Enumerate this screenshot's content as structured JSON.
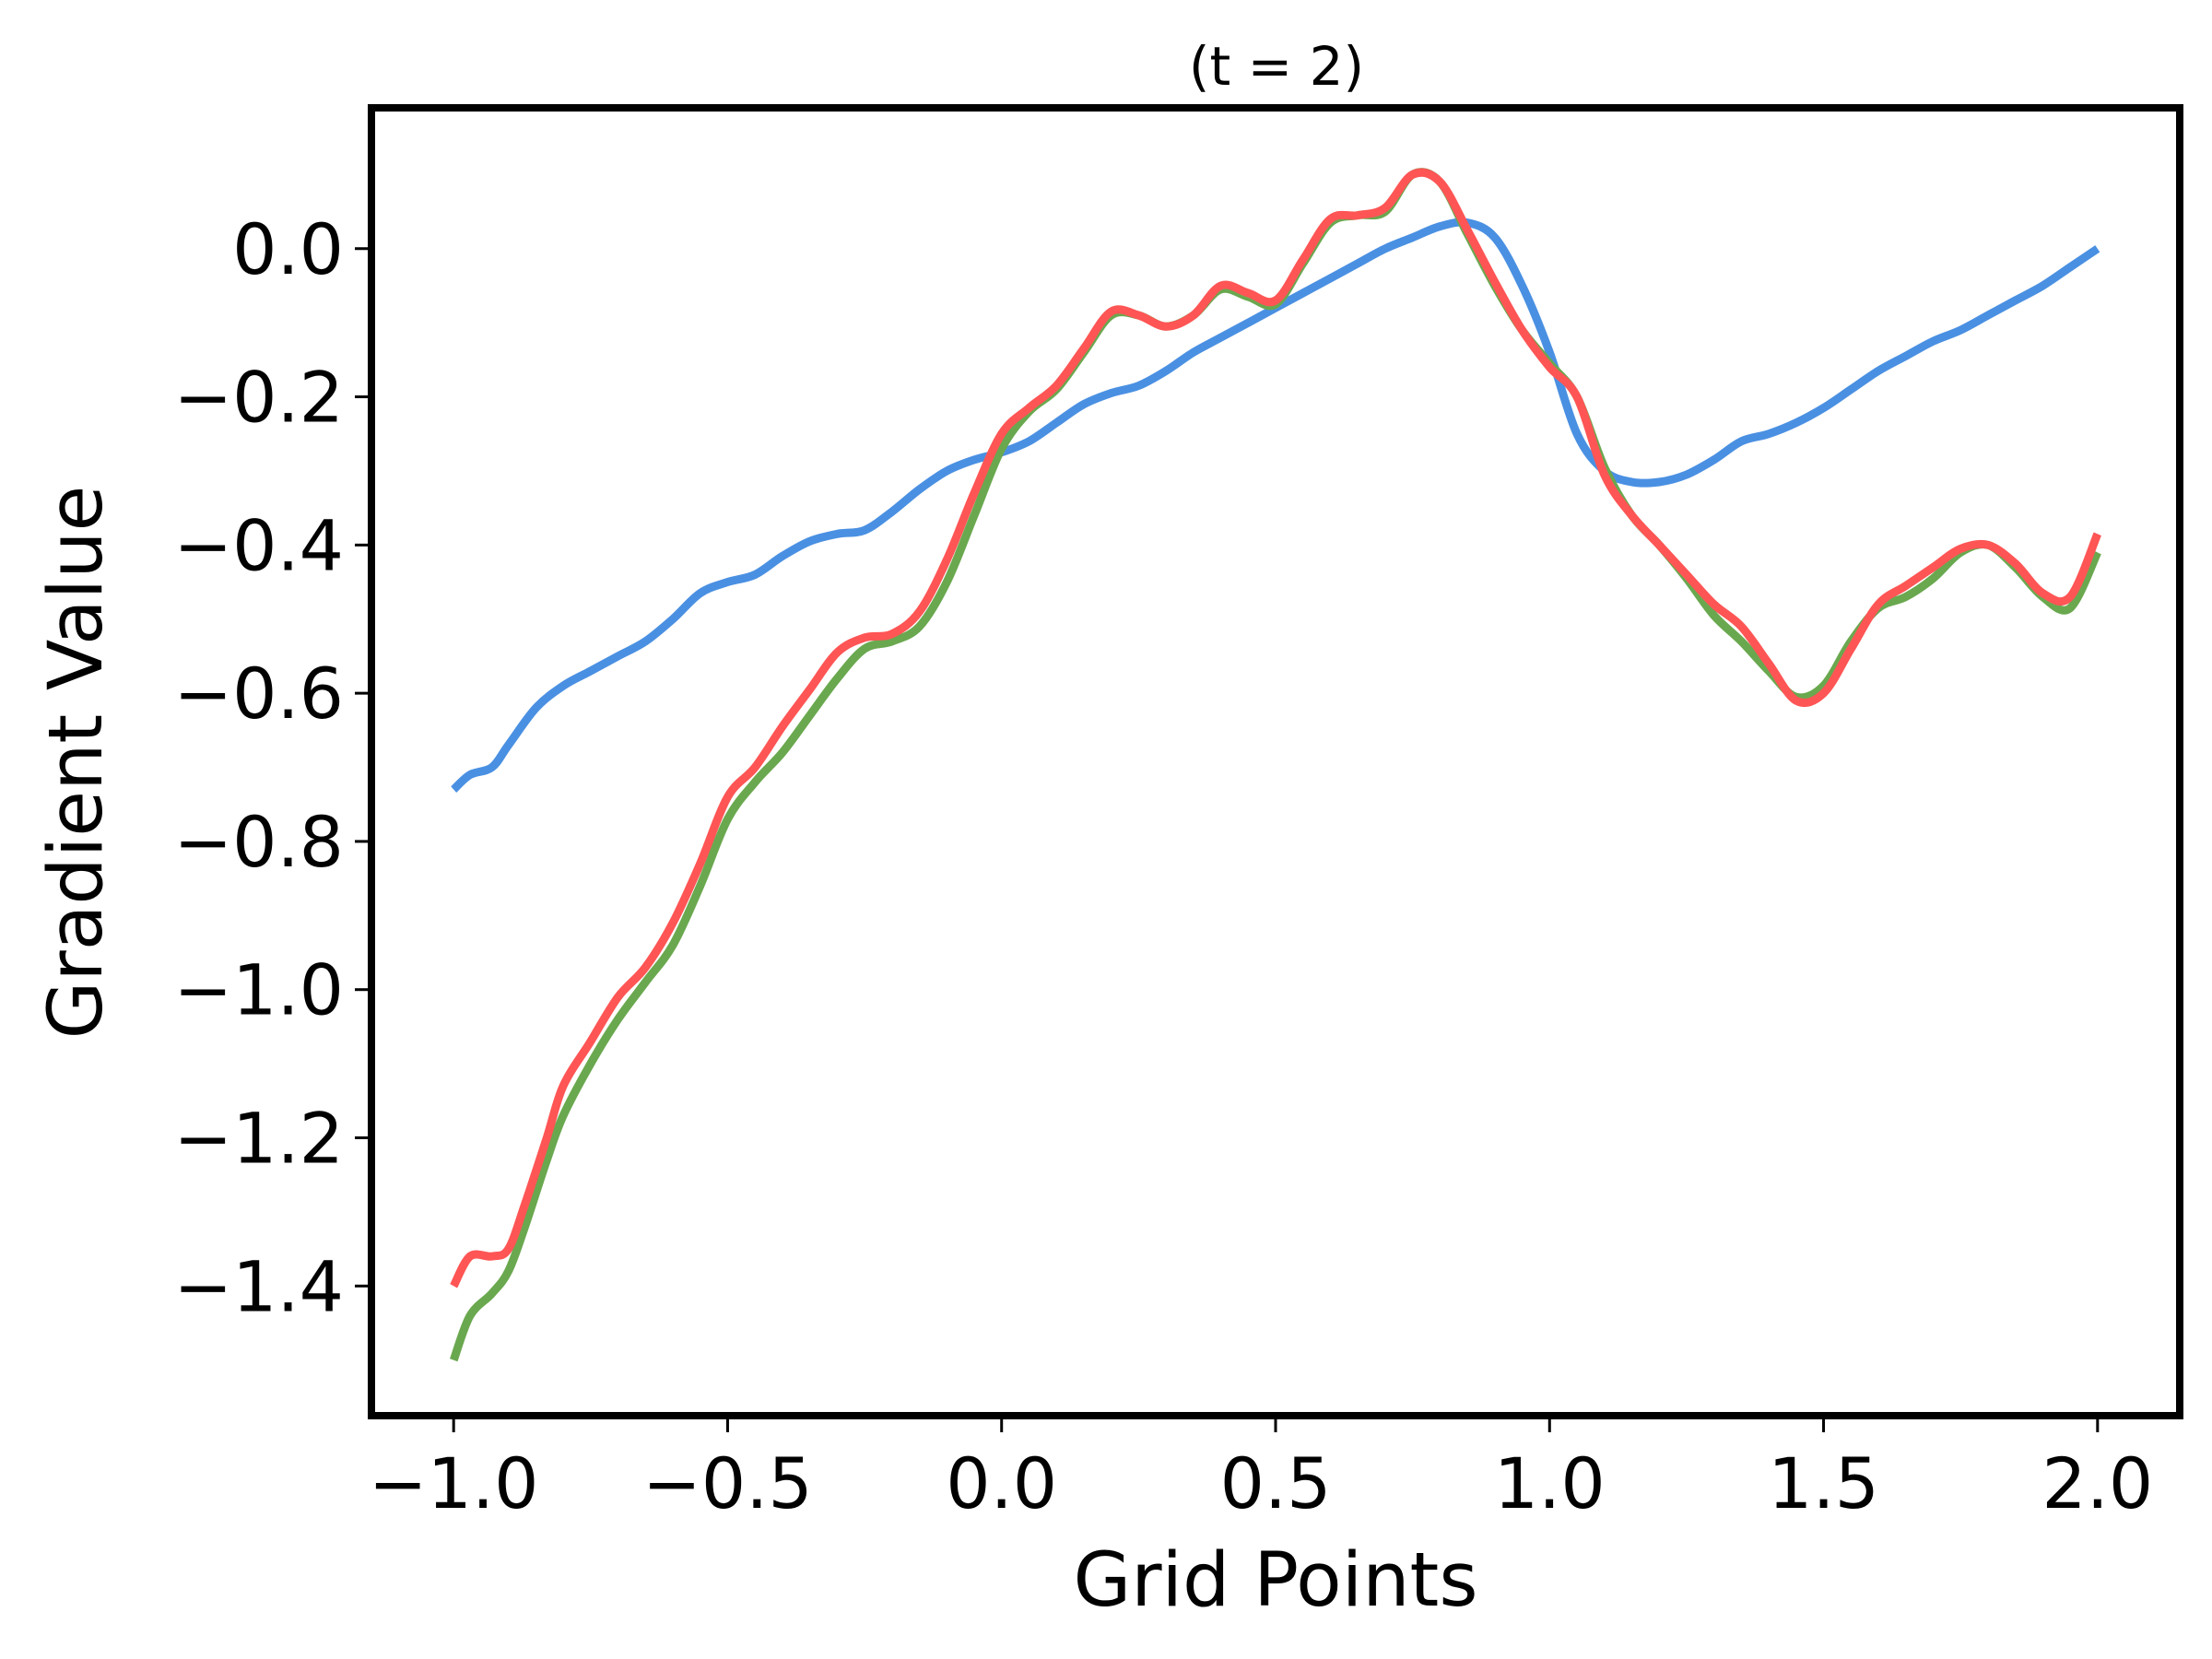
{
  "chart_data": {
    "type": "line",
    "title": "(t = 2)",
    "xlabel": "Grid Points",
    "ylabel": "Gradient Value",
    "xlim": [
      -1.15,
      2.15
    ],
    "ylim": [
      -1.575,
      0.19
    ],
    "grid": false,
    "legend": "none",
    "xticks": [
      -1.0,
      -0.5,
      0.0,
      0.5,
      1.0,
      1.5,
      2.0
    ],
    "xtick_labels": [
      "−1.0",
      "−0.5",
      "0.0",
      "0.5",
      "1.0",
      "1.5",
      "2.0"
    ],
    "yticks": [
      0.0,
      -0.2,
      -0.4,
      -0.6,
      -0.8,
      -1.0,
      -1.2,
      -1.4
    ],
    "ytick_labels": [
      "0.0",
      "−0.2",
      "−0.4",
      "−0.6",
      "−0.8",
      "−1.0",
      "−1.2",
      "−1.4"
    ],
    "series": [
      {
        "color": "#4a90e2",
        "points": [
          [
            -1.0,
            -0.73
          ],
          [
            -0.97,
            -0.71
          ],
          [
            -0.93,
            -0.7
          ],
          [
            -0.9,
            -0.67
          ],
          [
            -0.85,
            -0.62
          ],
          [
            -0.8,
            -0.59
          ],
          [
            -0.75,
            -0.57
          ],
          [
            -0.7,
            -0.55
          ],
          [
            -0.65,
            -0.53
          ],
          [
            -0.6,
            -0.5
          ],
          [
            -0.55,
            -0.465
          ],
          [
            -0.5,
            -0.45
          ],
          [
            -0.45,
            -0.44
          ],
          [
            -0.4,
            -0.415
          ],
          [
            -0.35,
            -0.395
          ],
          [
            -0.3,
            -0.385
          ],
          [
            -0.25,
            -0.38
          ],
          [
            -0.2,
            -0.355
          ],
          [
            -0.15,
            -0.325
          ],
          [
            -0.1,
            -0.3
          ],
          [
            -0.05,
            -0.285
          ],
          [
            0.0,
            -0.275
          ],
          [
            0.05,
            -0.26
          ],
          [
            0.1,
            -0.235
          ],
          [
            0.15,
            -0.21
          ],
          [
            0.2,
            -0.195
          ],
          [
            0.25,
            -0.185
          ],
          [
            0.3,
            -0.165
          ],
          [
            0.35,
            -0.14
          ],
          [
            0.4,
            -0.12
          ],
          [
            0.45,
            -0.1
          ],
          [
            0.5,
            -0.08
          ],
          [
            0.55,
            -0.06
          ],
          [
            0.6,
            -0.04
          ],
          [
            0.65,
            -0.02
          ],
          [
            0.7,
            0.0
          ],
          [
            0.75,
            0.015
          ],
          [
            0.8,
            0.03
          ],
          [
            0.85,
            0.035
          ],
          [
            0.9,
            0.015
          ],
          [
            0.95,
            -0.05
          ],
          [
            1.0,
            -0.14
          ],
          [
            1.05,
            -0.25
          ],
          [
            1.1,
            -0.3
          ],
          [
            1.15,
            -0.315
          ],
          [
            1.2,
            -0.315
          ],
          [
            1.25,
            -0.305
          ],
          [
            1.3,
            -0.285
          ],
          [
            1.35,
            -0.26
          ],
          [
            1.4,
            -0.25
          ],
          [
            1.45,
            -0.235
          ],
          [
            1.5,
            -0.215
          ],
          [
            1.55,
            -0.19
          ],
          [
            1.6,
            -0.165
          ],
          [
            1.65,
            -0.145
          ],
          [
            1.7,
            -0.125
          ],
          [
            1.75,
            -0.11
          ],
          [
            1.8,
            -0.09
          ],
          [
            1.85,
            -0.07
          ],
          [
            1.9,
            -0.05
          ],
          [
            1.95,
            -0.025
          ],
          [
            2.0,
            0.0
          ]
        ]
      },
      {
        "color": "#6aa84f",
        "points": [
          [
            -1.0,
            -1.5
          ],
          [
            -0.97,
            -1.44
          ],
          [
            -0.93,
            -1.41
          ],
          [
            -0.9,
            -1.38
          ],
          [
            -0.87,
            -1.32
          ],
          [
            -0.83,
            -1.23
          ],
          [
            -0.8,
            -1.17
          ],
          [
            -0.75,
            -1.1
          ],
          [
            -0.7,
            -1.04
          ],
          [
            -0.65,
            -0.99
          ],
          [
            -0.6,
            -0.94
          ],
          [
            -0.55,
            -0.86
          ],
          [
            -0.5,
            -0.77
          ],
          [
            -0.45,
            -0.72
          ],
          [
            -0.4,
            -0.68
          ],
          [
            -0.35,
            -0.63
          ],
          [
            -0.3,
            -0.58
          ],
          [
            -0.25,
            -0.54
          ],
          [
            -0.2,
            -0.53
          ],
          [
            -0.15,
            -0.51
          ],
          [
            -0.1,
            -0.45
          ],
          [
            -0.05,
            -0.36
          ],
          [
            0.0,
            -0.27
          ],
          [
            0.05,
            -0.22
          ],
          [
            0.1,
            -0.19
          ],
          [
            0.15,
            -0.14
          ],
          [
            0.2,
            -0.09
          ],
          [
            0.25,
            -0.09
          ],
          [
            0.3,
            -0.105
          ],
          [
            0.35,
            -0.09
          ],
          [
            0.4,
            -0.055
          ],
          [
            0.45,
            -0.065
          ],
          [
            0.5,
            -0.075
          ],
          [
            0.55,
            -0.02
          ],
          [
            0.6,
            0.035
          ],
          [
            0.65,
            0.045
          ],
          [
            0.7,
            0.05
          ],
          [
            0.75,
            0.1
          ],
          [
            0.8,
            0.09
          ],
          [
            0.85,
            0.02
          ],
          [
            0.9,
            -0.05
          ],
          [
            0.95,
            -0.11
          ],
          [
            1.0,
            -0.155
          ],
          [
            1.05,
            -0.2
          ],
          [
            1.1,
            -0.295
          ],
          [
            1.15,
            -0.36
          ],
          [
            1.2,
            -0.4
          ],
          [
            1.25,
            -0.445
          ],
          [
            1.3,
            -0.495
          ],
          [
            1.35,
            -0.53
          ],
          [
            1.4,
            -0.57
          ],
          [
            1.45,
            -0.605
          ],
          [
            1.5,
            -0.59
          ],
          [
            1.55,
            -0.53
          ],
          [
            1.6,
            -0.485
          ],
          [
            1.65,
            -0.47
          ],
          [
            1.7,
            -0.445
          ],
          [
            1.75,
            -0.41
          ],
          [
            1.8,
            -0.4
          ],
          [
            1.85,
            -0.43
          ],
          [
            1.9,
            -0.47
          ],
          [
            1.95,
            -0.485
          ],
          [
            2.0,
            -0.41
          ]
        ]
      },
      {
        "color": "#ff5555",
        "points": [
          [
            -1.0,
            -1.4
          ],
          [
            -0.97,
            -1.36
          ],
          [
            -0.93,
            -1.36
          ],
          [
            -0.9,
            -1.35
          ],
          [
            -0.87,
            -1.29
          ],
          [
            -0.83,
            -1.2
          ],
          [
            -0.8,
            -1.13
          ],
          [
            -0.75,
            -1.07
          ],
          [
            -0.7,
            -1.01
          ],
          [
            -0.65,
            -0.97
          ],
          [
            -0.6,
            -0.91
          ],
          [
            -0.55,
            -0.83
          ],
          [
            -0.5,
            -0.74
          ],
          [
            -0.45,
            -0.7
          ],
          [
            -0.4,
            -0.645
          ],
          [
            -0.35,
            -0.595
          ],
          [
            -0.3,
            -0.545
          ],
          [
            -0.25,
            -0.525
          ],
          [
            -0.2,
            -0.52
          ],
          [
            -0.15,
            -0.49
          ],
          [
            -0.1,
            -0.42
          ],
          [
            -0.05,
            -0.33
          ],
          [
            0.0,
            -0.25
          ],
          [
            0.05,
            -0.215
          ],
          [
            0.1,
            -0.185
          ],
          [
            0.15,
            -0.135
          ],
          [
            0.2,
            -0.085
          ],
          [
            0.25,
            -0.09
          ],
          [
            0.3,
            -0.105
          ],
          [
            0.35,
            -0.09
          ],
          [
            0.4,
            -0.05
          ],
          [
            0.45,
            -0.06
          ],
          [
            0.5,
            -0.07
          ],
          [
            0.55,
            -0.015
          ],
          [
            0.6,
            0.04
          ],
          [
            0.65,
            0.045
          ],
          [
            0.7,
            0.055
          ],
          [
            0.75,
            0.1
          ],
          [
            0.8,
            0.09
          ],
          [
            0.85,
            0.025
          ],
          [
            0.9,
            -0.045
          ],
          [
            0.95,
            -0.11
          ],
          [
            1.0,
            -0.16
          ],
          [
            1.05,
            -0.2
          ],
          [
            1.1,
            -0.305
          ],
          [
            1.15,
            -0.36
          ],
          [
            1.2,
            -0.4
          ],
          [
            1.25,
            -0.44
          ],
          [
            1.3,
            -0.48
          ],
          [
            1.35,
            -0.51
          ],
          [
            1.4,
            -0.56
          ],
          [
            1.45,
            -0.61
          ],
          [
            1.5,
            -0.6
          ],
          [
            1.55,
            -0.54
          ],
          [
            1.6,
            -0.48
          ],
          [
            1.65,
            -0.455
          ],
          [
            1.7,
            -0.43
          ],
          [
            1.75,
            -0.405
          ],
          [
            1.8,
            -0.4
          ],
          [
            1.85,
            -0.425
          ],
          [
            1.9,
            -0.465
          ],
          [
            1.95,
            -0.47
          ],
          [
            2.0,
            -0.385
          ]
        ]
      }
    ]
  }
}
